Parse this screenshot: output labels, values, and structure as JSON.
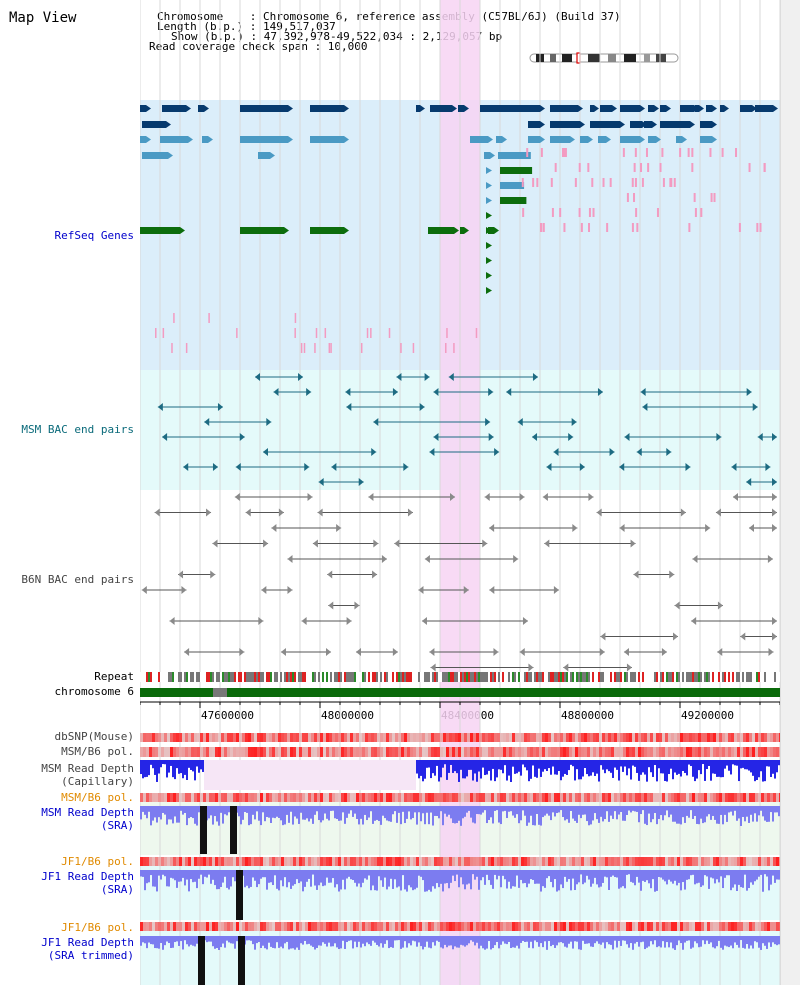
{
  "view_title": "Map View",
  "header": {
    "chromosome_line": "Chromosome    : Chromosome 6, reference assembly (C57BL/6J) (Build 37)",
    "length_line": "Length (b.p.) : 149,517,037",
    "show_line": "Show (b.p.) : 47,392,978-49,522,034 : 2,129,057 bp",
    "coverage_line": "Read coverage check span : 10,000"
  },
  "tracks": {
    "refseq": "RefSeq Genes",
    "msm_bac": "MSM BAC end pairs",
    "b6n_bac": "B6N BAC end pairs",
    "repeat": "Repeat",
    "chromosome": "chromosome 6",
    "dbsnp": "dbSNP(Mouse)",
    "msm_b6_pol_1": "MSM/B6 pol.",
    "msm_depth_cap_1": "MSM Read Depth",
    "msm_depth_cap_2": "(Capillary)",
    "msm_b6_pol_2": "MSM/B6 pol.",
    "msm_depth_sra_1": "MSM Read Depth",
    "msm_depth_sra_2": "(SRA)",
    "jf1_b6_pol_1": "JF1/B6 pol.",
    "jf1_depth_sra_1": "JF1 Read Depth",
    "jf1_depth_sra_2": "(SRA)",
    "jf1_b6_pol_2": "JF1/B6 pol.",
    "jf1_depth_trim_1": "JF1 Read Depth",
    "jf1_depth_trim_2": "(SRA trimmed)"
  },
  "ruler_ticks": [
    "47600000",
    "48000000",
    "48400000",
    "48800000",
    "49200000"
  ],
  "colors": {
    "refseq_bg": "#dbeefa",
    "bac_bg": "#e4fafa",
    "highlight": "#f7d3f3",
    "dark_blue": "#063a6e",
    "mid_blue": "#4a9ac4",
    "green": "#0c6d0c",
    "pink": "#f39bc1",
    "teal": "#1d6b82",
    "gray": "#8a8a8a",
    "chrom_green": "#0a6a0a",
    "depth_blue": "#2525e6",
    "depth_light": "#7c7cf0",
    "pol_red": "#ee4444"
  }
}
